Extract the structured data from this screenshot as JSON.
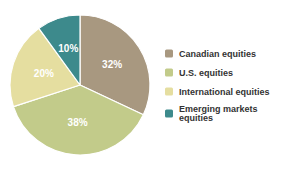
{
  "chart_data": {
    "type": "pie",
    "categories": [
      "Canadian equities",
      "U.S. equities",
      "International equities",
      "Emerging markets\nequities"
    ],
    "values": [
      32,
      38,
      20,
      10
    ],
    "value_labels": [
      "32%",
      "38%",
      "20%",
      "10%"
    ],
    "colors": [
      "#a89880",
      "#c2cb8a",
      "#e5dea0",
      "#3d8a8c"
    ],
    "data_labels": true,
    "legend": "right"
  }
}
